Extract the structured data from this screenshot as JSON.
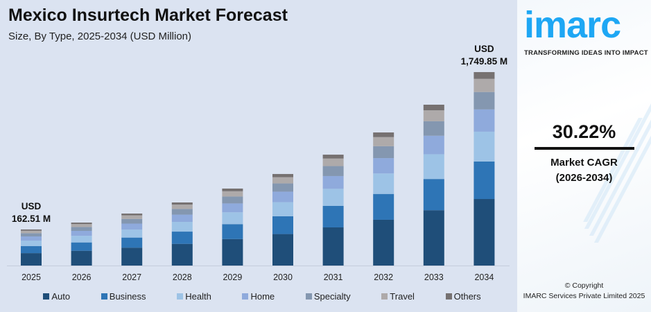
{
  "chart_data": {
    "type": "bar",
    "stacked": true,
    "title": "Mexico Insurtech Market Forecast",
    "subtitle": "Size, By Type, 2025-2034 (USD Million)",
    "categories": [
      "2025",
      "2026",
      "2027",
      "2028",
      "2029",
      "2030",
      "2031",
      "2032",
      "2033",
      "2034"
    ],
    "totals": [
      162.51,
      232,
      323,
      435,
      575,
      722,
      917,
      1141,
      1421,
      1749.85
    ],
    "series": [
      {
        "name": "Auto",
        "color": "#1f4e79",
        "values": [
          55.9,
          79.8,
          111.1,
          149.6,
          197.8,
          248.4,
          315.4,
          392.5,
          488.8,
          601.9
        ]
      },
      {
        "name": "Business",
        "color": "#2e75b6",
        "values": [
          31.5,
          45.0,
          62.7,
          84.4,
          111.6,
          140.1,
          177.9,
          221.4,
          275.7,
          339.5
        ]
      },
      {
        "name": "Health",
        "color": "#9dc3e6",
        "values": [
          25.0,
          35.7,
          49.7,
          67.0,
          88.6,
          111.2,
          141.2,
          175.7,
          218.8,
          269.5
        ]
      },
      {
        "name": "Home",
        "color": "#8faadc",
        "values": [
          18.7,
          26.7,
          37.1,
          50.0,
          66.1,
          83.0,
          105.5,
          131.2,
          163.4,
          201.2
        ]
      },
      {
        "name": "Specialty",
        "color": "#8497b0",
        "values": [
          14.6,
          20.9,
          29.1,
          39.2,
          51.8,
          65.0,
          82.5,
          102.7,
          127.9,
          157.5
        ]
      },
      {
        "name": "Travel",
        "color": "#aeaaaa",
        "values": [
          11.1,
          15.8,
          22.0,
          29.6,
          39.1,
          49.1,
          62.4,
          77.6,
          96.6,
          119.0
        ]
      },
      {
        "name": "Others",
        "color": "#767171",
        "values": [
          5.7,
          8.1,
          11.3,
          15.2,
          20.1,
          25.3,
          32.1,
          39.9,
          49.7,
          61.2
        ]
      }
    ],
    "annotations": [
      {
        "category": "2025",
        "line1": "USD",
        "line2": "162.51 M"
      },
      {
        "category": "2034",
        "line1": "USD",
        "line2": "1,749.85 M"
      }
    ],
    "grid": false,
    "legend": "bottom"
  },
  "side": {
    "logo_text": "imarc",
    "tagline": "TRANSFORMING IDEAS INTO IMPACT",
    "cagr_value": "30.22%",
    "cagr_label": "Market CAGR",
    "cagr_period": "(2026-2034)",
    "copyright": "© Copyright",
    "company": "IMARC Services Private Limited 2025",
    "brand_color": "#1ea7f4"
  }
}
